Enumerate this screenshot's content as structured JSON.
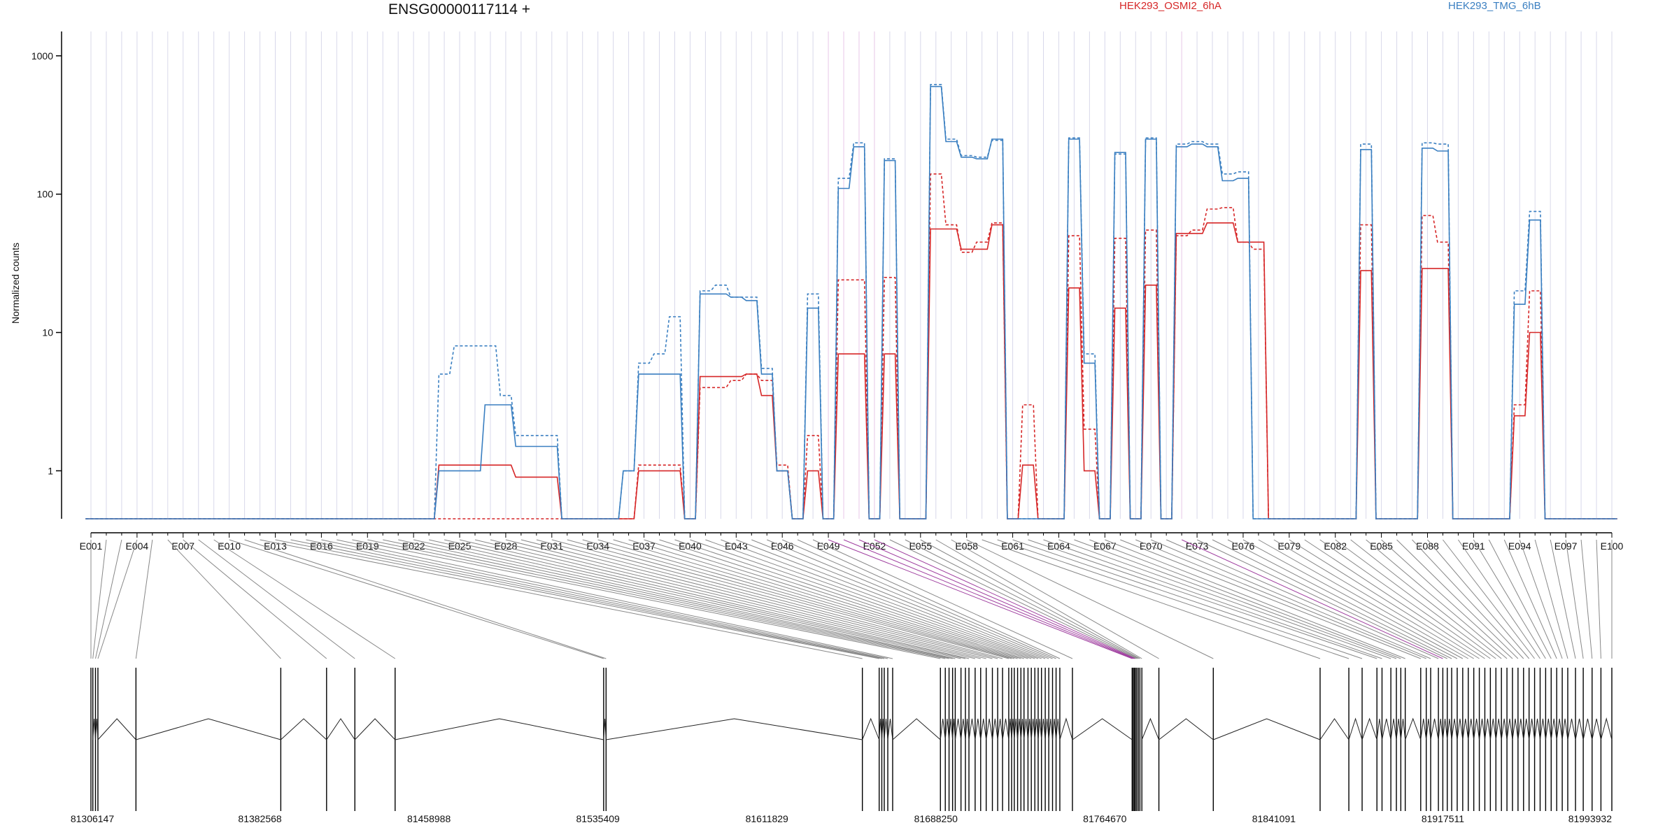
{
  "header": {
    "gene_title": "ENSG00000117114 +",
    "ylabel": "Normalized counts"
  },
  "legend": [
    {
      "name": "HEK293_OSMI2_6hA",
      "color": "#d62728"
    },
    {
      "name": "HEK293_TMG_6hB",
      "color": "#3a7fc1"
    }
  ],
  "colors": {
    "osmi": "#d62728",
    "tmg": "#3a7fc1",
    "grid": "#d8d8ea",
    "highlight": "#a040a0",
    "link": "#888888"
  },
  "chart_data": {
    "type": "line",
    "title": "ENSG00000117114 +",
    "ylabel": "Normalized counts",
    "yscale": "log",
    "ylim": [
      0.45,
      1500
    ],
    "yticks": [
      1,
      10,
      100,
      1000
    ],
    "ytick_labels": [
      "1",
      "10",
      "100",
      "1000"
    ],
    "exon_count": 100,
    "exon_labels": [
      "E001",
      "E004",
      "E007",
      "E010",
      "E013",
      "E016",
      "E019",
      "E022",
      "E025",
      "E028",
      "E031",
      "E034",
      "E037",
      "E040",
      "E043",
      "E046",
      "E049",
      "E052",
      "E055",
      "E058",
      "E061",
      "E064",
      "E067",
      "E070",
      "E073",
      "E076",
      "E079",
      "E082",
      "E085",
      "E088",
      "E091",
      "E094",
      "E097",
      "E100"
    ],
    "highlighted_exons": [
      49,
      50,
      51,
      52,
      72
    ],
    "series": [
      {
        "name": "HEK293_OSMI2_6hA",
        "color": "#d62728",
        "style": "solid",
        "values": [
          0.45,
          0.45,
          0.45,
          0.45,
          0.45,
          0.45,
          0.45,
          0.45,
          0.45,
          0.45,
          0.45,
          0.45,
          0.45,
          0.45,
          0.45,
          0.45,
          0.45,
          0.45,
          0.45,
          0.45,
          0.45,
          0.45,
          0.45,
          1.1,
          1.1,
          1.1,
          1.1,
          1.1,
          0.9,
          0.9,
          0.9,
          0.45,
          0.45,
          0.45,
          0.45,
          0.45,
          1.0,
          1.0,
          1.0,
          0.45,
          4.8,
          4.8,
          4.8,
          5.0,
          3.5,
          1.0,
          0.45,
          1.0,
          0.45,
          7.0,
          7.0,
          0.45,
          7.0,
          0.45,
          0.45,
          56,
          56,
          40,
          40,
          60,
          0.45,
          1.1,
          0.45,
          0.45,
          21,
          1.0,
          0.45,
          15,
          0.45,
          22,
          0.45,
          52,
          52,
          62,
          62,
          45,
          45,
          0.45,
          0.45,
          0.45,
          0.45,
          0.45,
          0.45,
          28,
          0.45,
          0.45,
          0.45,
          29,
          29,
          0.45,
          0.45,
          0.45,
          0.45,
          2.5,
          10,
          0.45,
          0.45,
          0.45,
          0.45,
          0.45
        ]
      },
      {
        "name": "HEK293_OSMI2_6hA",
        "color": "#d62728",
        "style": "dashed",
        "values": [
          0.45,
          0.45,
          0.45,
          0.45,
          0.45,
          0.45,
          0.45,
          0.45,
          0.45,
          0.45,
          0.45,
          0.45,
          0.45,
          0.45,
          0.45,
          0.45,
          0.45,
          0.45,
          0.45,
          0.45,
          0.45,
          0.45,
          0.45,
          0.45,
          0.45,
          0.45,
          0.45,
          0.45,
          0.45,
          0.45,
          0.45,
          0.45,
          0.45,
          0.45,
          0.45,
          0.45,
          1.1,
          1.1,
          1.1,
          0.45,
          4.0,
          4.0,
          4.5,
          5.0,
          4.5,
          1.1,
          0.45,
          1.8,
          0.45,
          24,
          24,
          0.45,
          25,
          0.45,
          0.45,
          140,
          60,
          38,
          45,
          62,
          0.45,
          3.0,
          0.45,
          0.45,
          50,
          2.0,
          0.45,
          48,
          0.45,
          55,
          0.45,
          50,
          55,
          78,
          80,
          45,
          40,
          0.45,
          0.45,
          0.45,
          0.45,
          0.45,
          0.45,
          60,
          0.45,
          0.45,
          0.45,
          70,
          45,
          0.45,
          0.45,
          0.45,
          0.45,
          3.0,
          20,
          0.45,
          0.45,
          0.45,
          0.45,
          0.45
        ]
      },
      {
        "name": "HEK293_TMG_6hB",
        "color": "#3a7fc1",
        "style": "solid",
        "values": [
          0.45,
          0.45,
          0.45,
          0.45,
          0.45,
          0.45,
          0.45,
          0.45,
          0.45,
          0.45,
          0.45,
          0.45,
          0.45,
          0.45,
          0.45,
          0.45,
          0.45,
          0.45,
          0.45,
          0.45,
          0.45,
          0.45,
          0.45,
          1.0,
          1.0,
          1.0,
          3.0,
          3.0,
          1.5,
          1.5,
          1.5,
          0.45,
          0.45,
          0.45,
          0.45,
          1.0,
          5.0,
          5.0,
          5.0,
          0.45,
          19,
          19,
          18,
          17,
          5.0,
          1.0,
          0.45,
          15,
          0.45,
          110,
          220,
          0.45,
          175,
          0.45,
          0.45,
          600,
          240,
          185,
          180,
          250,
          0.45,
          0.45,
          0.45,
          0.45,
          250,
          6.0,
          0.45,
          200,
          0.45,
          250,
          0.45,
          220,
          230,
          220,
          125,
          130,
          0.45,
          0.45,
          0.45,
          0.45,
          0.45,
          0.45,
          0.45,
          210,
          0.45,
          0.45,
          0.45,
          215,
          205,
          0.45,
          0.45,
          0.45,
          0.45,
          16,
          65,
          0.45,
          0.45,
          0.45,
          0.45,
          0.45
        ]
      },
      {
        "name": "HEK293_TMG_6hB",
        "color": "#3a7fc1",
        "style": "dashed",
        "values": [
          0.45,
          0.45,
          0.45,
          0.45,
          0.45,
          0.45,
          0.45,
          0.45,
          0.45,
          0.45,
          0.45,
          0.45,
          0.45,
          0.45,
          0.45,
          0.45,
          0.45,
          0.45,
          0.45,
          0.45,
          0.45,
          0.45,
          0.45,
          5.0,
          8.0,
          8.0,
          8.0,
          3.5,
          1.8,
          1.8,
          1.8,
          0.45,
          0.45,
          0.45,
          0.45,
          1.0,
          6.0,
          7.0,
          13,
          0.45,
          20,
          22,
          18,
          18,
          5.5,
          1.0,
          0.45,
          19,
          0.45,
          130,
          235,
          0.45,
          180,
          0.45,
          0.45,
          620,
          250,
          190,
          185,
          245,
          0.45,
          0.45,
          0.45,
          0.45,
          255,
          7.0,
          0.45,
          195,
          0.45,
          255,
          0.45,
          230,
          240,
          230,
          140,
          145,
          0.45,
          0.45,
          0.45,
          0.45,
          0.45,
          0.45,
          0.45,
          230,
          0.45,
          0.45,
          0.45,
          235,
          230,
          0.45,
          0.45,
          0.45,
          0.45,
          20,
          75,
          0.45,
          0.45,
          0.45,
          0.45,
          0.45
        ]
      }
    ],
    "genomic_tick_labels": [
      "81306147",
      "81382568",
      "81458988",
      "81535409",
      "81611829",
      "81688250",
      "81764670",
      "81841091",
      "81917511",
      "81993932"
    ],
    "genomic_range": [
      81306147,
      81993932
    ],
    "exon_positions": [
      81306147,
      81307000,
      81308200,
      81309300,
      81326500,
      81392000,
      81412700,
      81425500,
      81443700,
      81538000,
      81539100,
      81655000,
      81662600,
      81663800,
      81664900,
      81666500,
      81668700,
      81690300,
      81692500,
      81694200,
      81695800,
      81697000,
      81699600,
      81701600,
      81703200,
      81706000,
      81708500,
      81711000,
      81713800,
      81716200,
      81718400,
      81721200,
      81722500,
      81723700,
      81725200,
      81726700,
      81728100,
      81729900,
      81731400,
      81733000,
      81734500,
      81736000,
      81737700,
      81739300,
      81741000,
      81742600,
      81744300,
      81750000,
      81777000,
      81777500,
      81778000,
      81778500,
      81779100,
      81779800,
      81780500,
      81781400,
      81789100,
      81813700,
      81862000,
      81875000,
      81881000,
      81887700,
      81890000,
      81894000,
      81896500,
      81898500,
      81900500,
      81907500,
      81910000,
      81912000,
      81915500,
      81917500,
      81919500,
      81921500,
      81924000,
      81926500,
      81929000,
      81931500,
      81934000,
      81936500,
      81939000,
      81941500,
      81944000,
      81946500,
      81949000,
      81951500,
      81954000,
      81956500,
      81959000,
      81961500,
      81964000,
      81966500,
      81969000,
      81971500,
      81974000,
      81977500,
      81981000,
      81985000,
      81989000,
      81993932
    ]
  }
}
